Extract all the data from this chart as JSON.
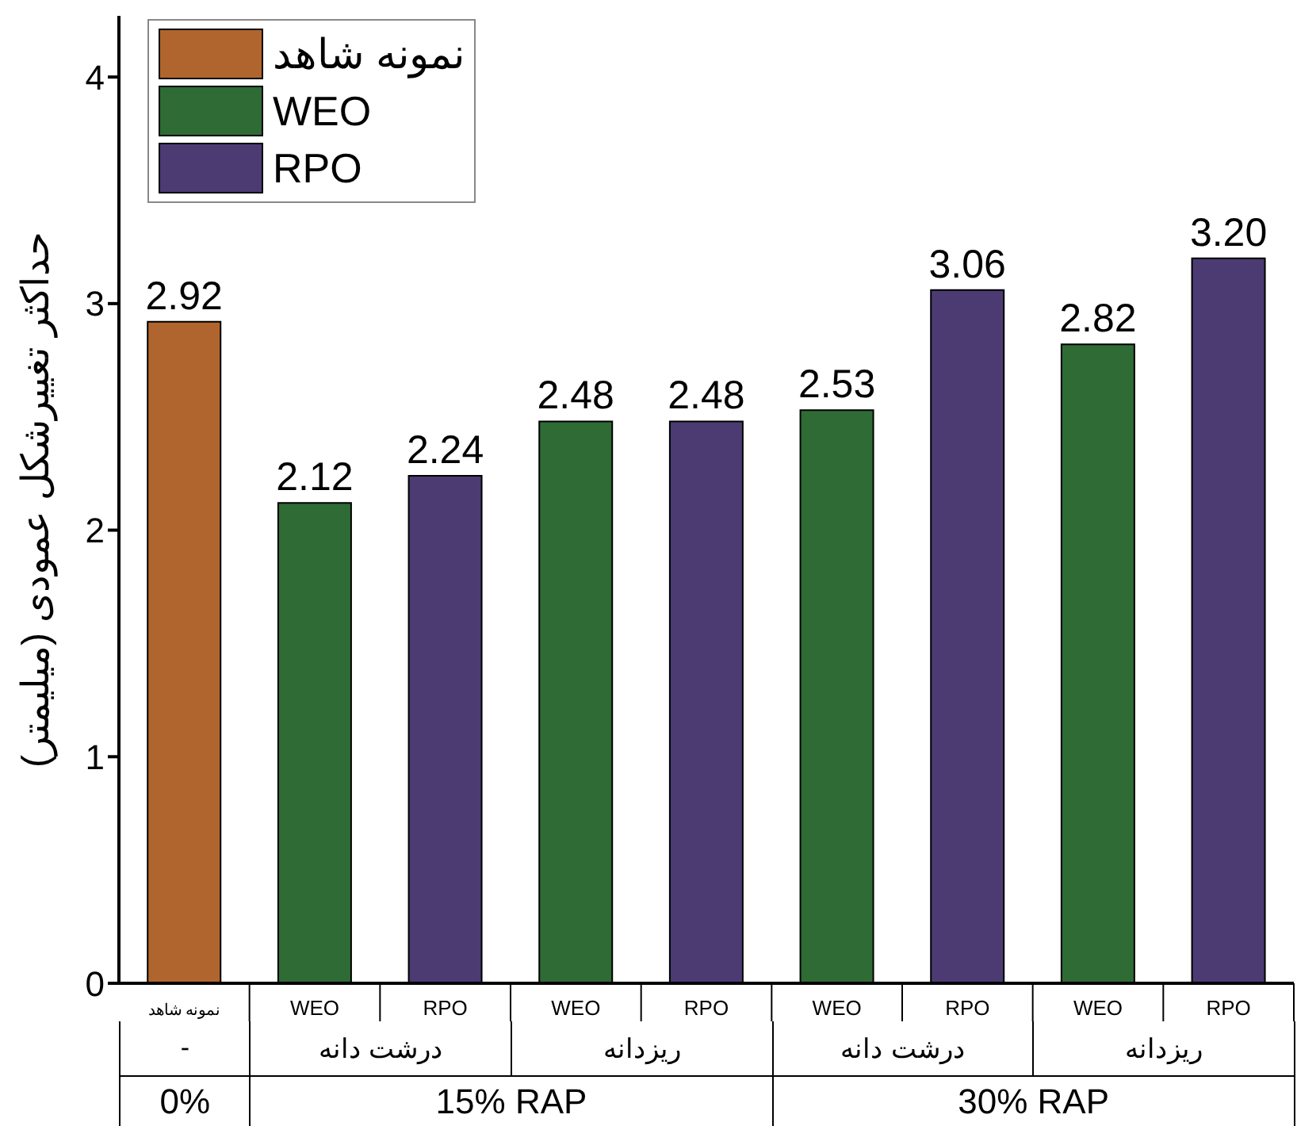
{
  "chart_data": {
    "type": "bar",
    "ylabel": "حداکثر تغییرشکل عمودی (میلیمتر)",
    "categories": [
      "نمونه شاهد",
      "WEO",
      "RPO",
      "WEO",
      "RPO",
      "WEO",
      "RPO",
      "WEO",
      "RPO"
    ],
    "stacked": true,
    "series": [
      {
        "name": "نمونه شاهد",
        "color": "#b0652e",
        "values": [
          2.92,
          null,
          null,
          null,
          null,
          null,
          null,
          null,
          null
        ],
        "value_labels": [
          "2.92",
          null,
          null,
          null,
          null,
          null,
          null,
          null,
          null
        ]
      },
      {
        "name": "WEO",
        "color": "#2f6b35",
        "values": [
          null,
          2.12,
          null,
          2.48,
          null,
          2.53,
          null,
          2.82,
          null
        ],
        "value_labels": [
          null,
          "2.12",
          null,
          "2.48",
          null,
          "2.53",
          null,
          "2.82",
          null
        ]
      },
      {
        "name": "RPO",
        "color": "#4b3b72",
        "values": [
          null,
          null,
          2.24,
          null,
          2.48,
          null,
          3.06,
          null,
          3.2
        ],
        "value_labels": [
          null,
          null,
          "2.24",
          null,
          "2.48",
          null,
          "3.06",
          null,
          "3.20"
        ]
      }
    ],
    "ylim": [
      0,
      4.27
    ],
    "yticks": [
      0,
      1,
      2,
      3,
      4
    ],
    "grid": false,
    "legend": "top left",
    "annotations": [
      "-",
      "درشت دانه",
      "ریزدانه",
      "درشت دانه",
      "ریزدانه",
      "0%",
      "15% RAP",
      "30% RAP"
    ]
  }
}
